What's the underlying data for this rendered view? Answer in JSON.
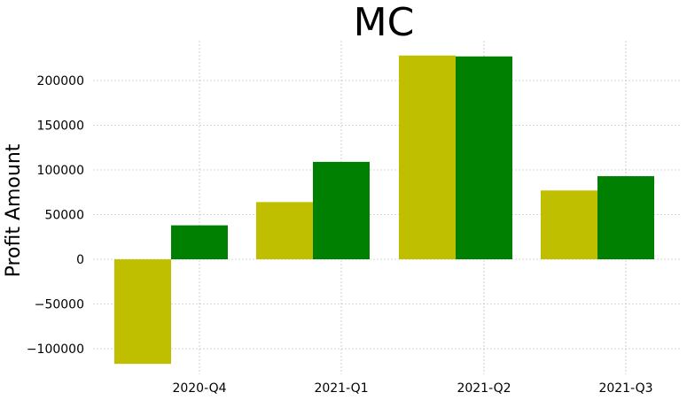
{
  "chart_data": {
    "type": "bar",
    "title": "MC",
    "xlabel": "",
    "ylabel": "Profit Amount",
    "categories": [
      "2020-Q4",
      "2021-Q1",
      "2021-Q2",
      "2021-Q3"
    ],
    "series": [
      {
        "color": "#bfbf00",
        "values": [
          -117000,
          64000,
          228000,
          77000
        ]
      },
      {
        "color": "#008000",
        "values": [
          38000,
          109000,
          227000,
          93000
        ]
      }
    ],
    "ylim": [
      -117000,
      228000
    ],
    "yticks": [
      -100000,
      -50000,
      0,
      50000,
      100000,
      150000,
      200000
    ],
    "ytick_labels": [
      "−100000",
      "−50000",
      "0",
      "50000",
      "100000",
      "150000",
      "200000"
    ],
    "grid": true,
    "legend": "none"
  }
}
